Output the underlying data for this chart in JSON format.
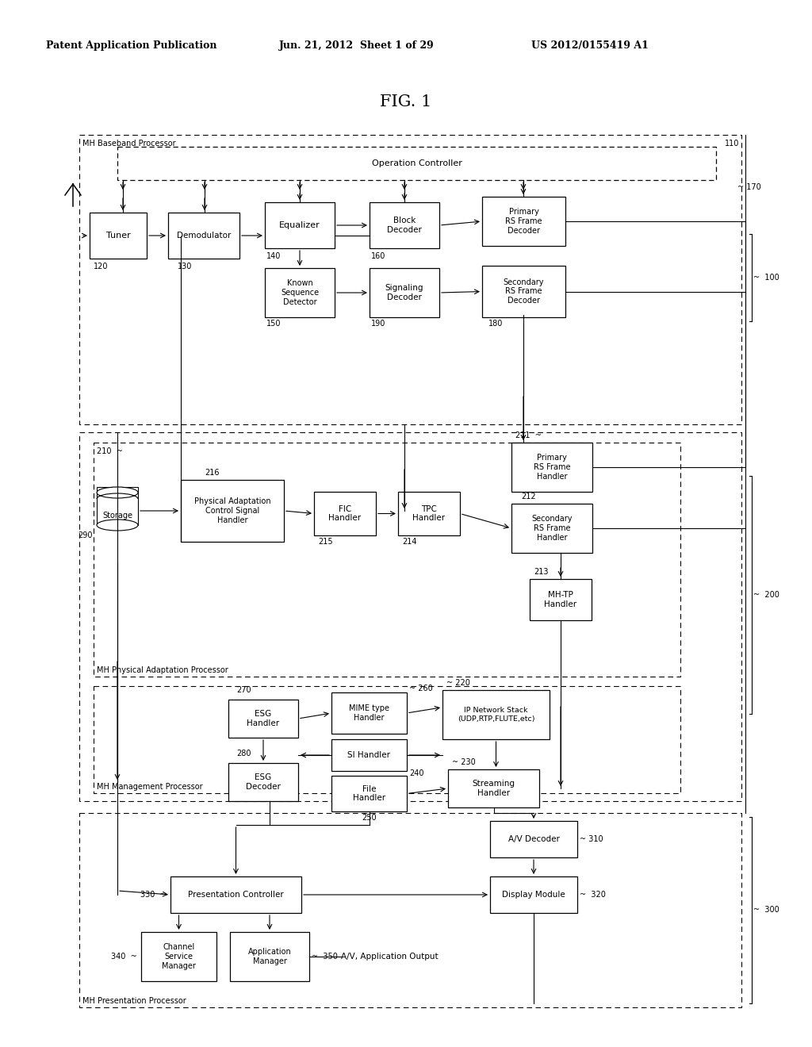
{
  "title": "FIG. 1",
  "header_left": "Patent Application Publication",
  "header_center": "Jun. 21, 2012  Sheet 1 of 29",
  "header_right": "US 2012/0155419 A1",
  "bg_color": "#ffffff"
}
